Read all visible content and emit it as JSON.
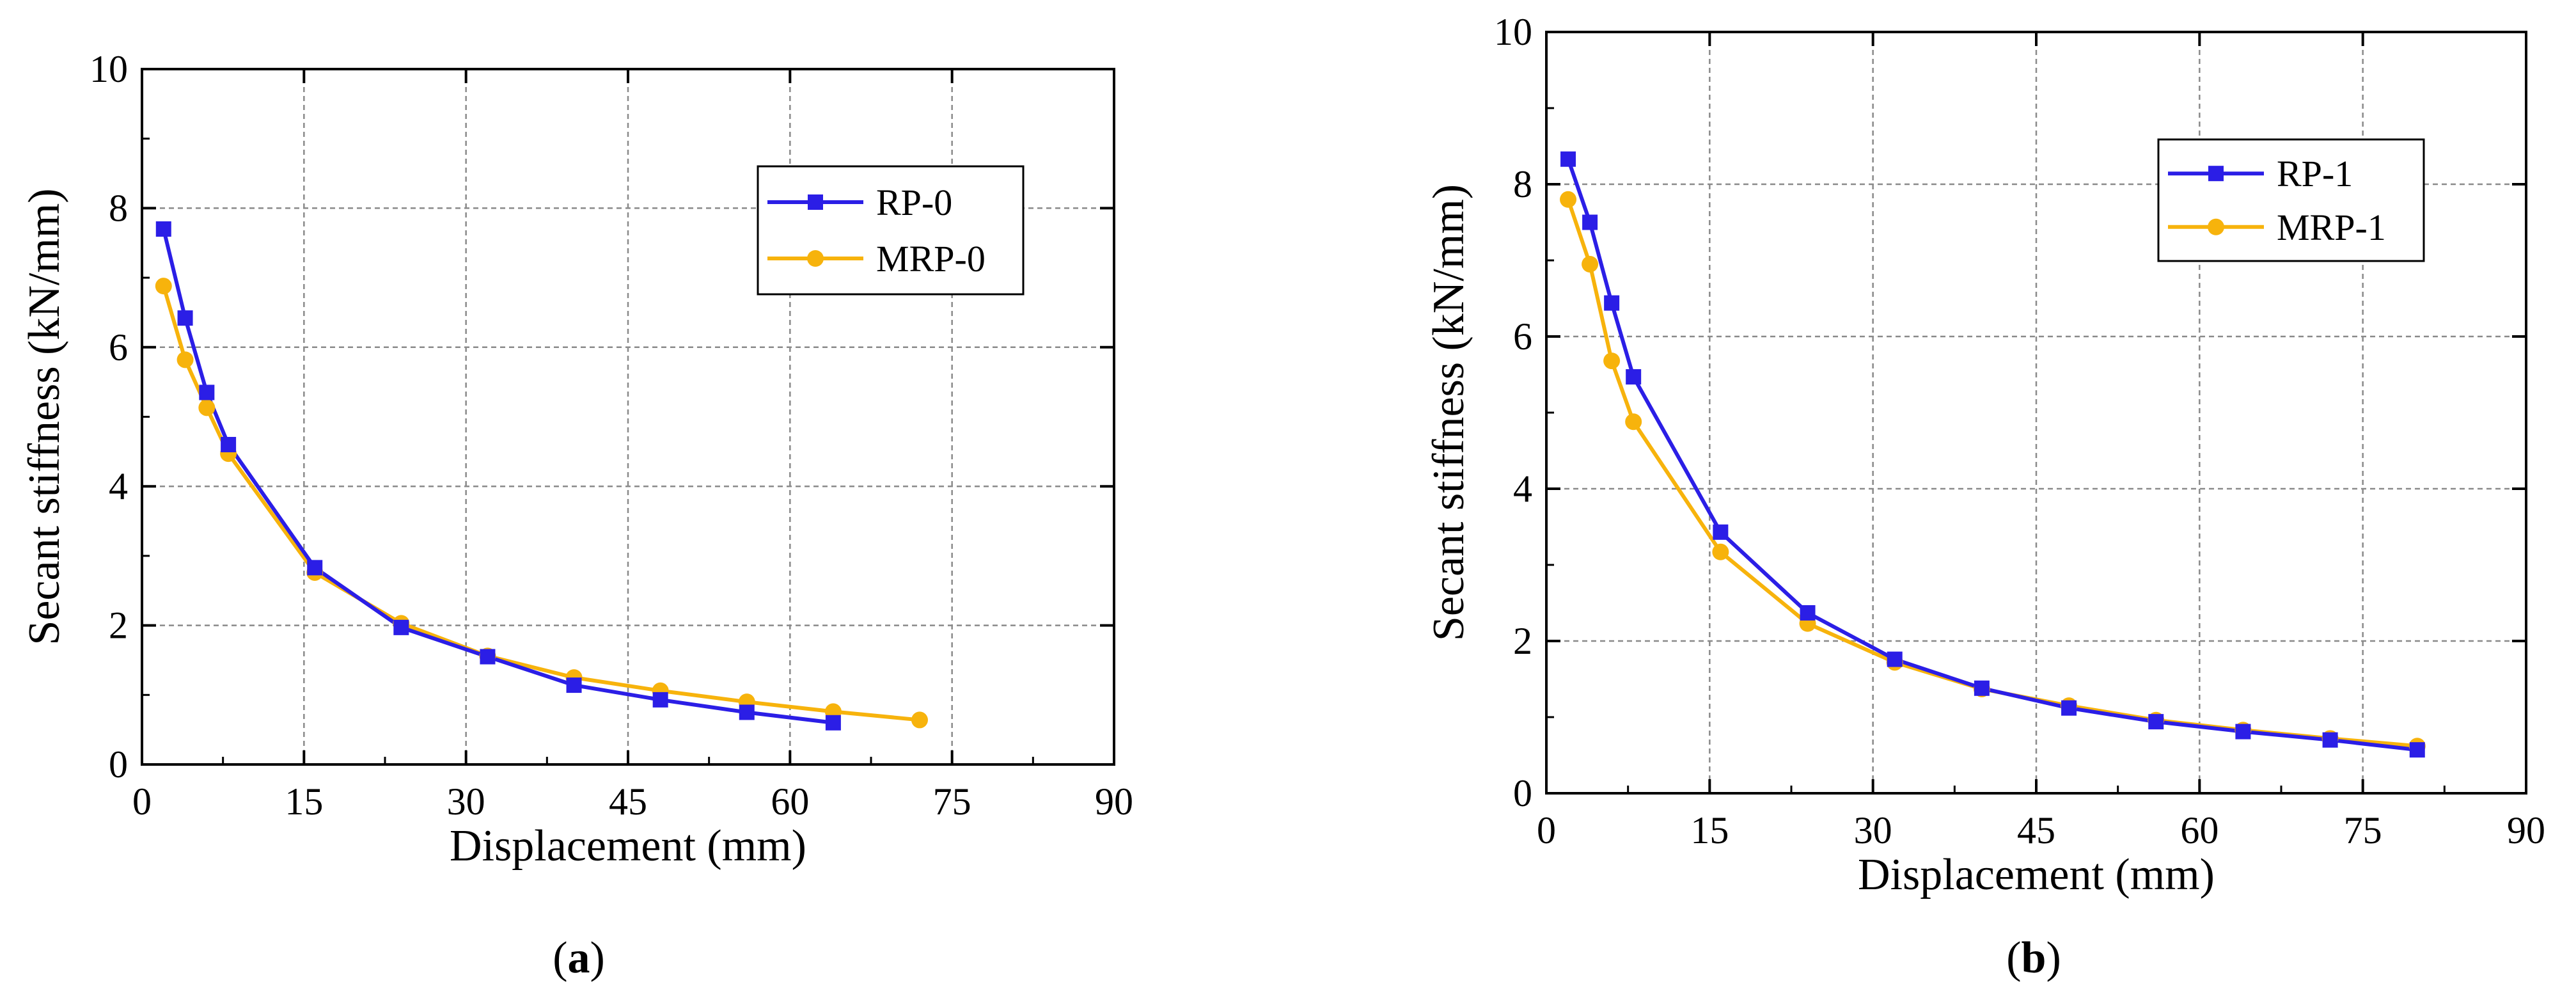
{
  "chart_data": [
    {
      "type": "line",
      "panel_label": "a",
      "xlabel": "Displacement (mm)",
      "ylabel": "Secant stiffness (kN/mm)",
      "xlim": [
        0,
        90
      ],
      "ylim": [
        0,
        10
      ],
      "xticks": [
        0,
        15,
        30,
        45,
        60,
        75,
        90
      ],
      "yticks": [
        0,
        2,
        4,
        6,
        8,
        10
      ],
      "grid": true,
      "legend_position": "top-right",
      "series": [
        {
          "name": "RP-0",
          "color": "#2b1ee6",
          "marker": "square",
          "x": [
            2,
            4,
            6,
            8,
            16,
            24,
            32,
            40,
            48,
            56,
            64
          ],
          "y": [
            7.7,
            6.42,
            5.35,
            4.6,
            2.83,
            1.97,
            1.55,
            1.14,
            0.93,
            0.75,
            0.6
          ]
        },
        {
          "name": "MRP-0",
          "color": "#f7b30c",
          "marker": "circle",
          "x": [
            2,
            4,
            6,
            8,
            16,
            24,
            32,
            40,
            48,
            56,
            64,
            72
          ],
          "y": [
            6.88,
            5.82,
            5.13,
            4.47,
            2.76,
            2.03,
            1.56,
            1.25,
            1.06,
            0.9,
            0.76,
            0.64
          ]
        }
      ]
    },
    {
      "type": "line",
      "panel_label": "b",
      "xlabel": "Displacement (mm)",
      "ylabel": "Secant stiffness (kN/mm)",
      "xlim": [
        0,
        90
      ],
      "ylim": [
        0,
        10
      ],
      "xticks": [
        0,
        15,
        30,
        45,
        60,
        75,
        90
      ],
      "yticks": [
        0,
        2,
        4,
        6,
        8,
        10
      ],
      "grid": true,
      "legend_position": "top-right",
      "series": [
        {
          "name": "RP-1",
          "color": "#2b1ee6",
          "marker": "square",
          "x": [
            2,
            4,
            6,
            8,
            16,
            24,
            32,
            40,
            48,
            56,
            64,
            72,
            80
          ],
          "y": [
            8.33,
            7.5,
            6.44,
            5.47,
            3.43,
            2.37,
            1.76,
            1.38,
            1.12,
            0.94,
            0.81,
            0.7,
            0.57
          ]
        },
        {
          "name": "MRP-1",
          "color": "#f7b30c",
          "marker": "circle",
          "x": [
            2,
            4,
            6,
            8,
            16,
            24,
            32,
            40,
            48,
            56,
            64,
            72,
            80
          ],
          "y": [
            7.8,
            6.95,
            5.68,
            4.88,
            3.17,
            2.23,
            1.72,
            1.37,
            1.15,
            0.96,
            0.83,
            0.72,
            0.62
          ]
        }
      ]
    }
  ]
}
